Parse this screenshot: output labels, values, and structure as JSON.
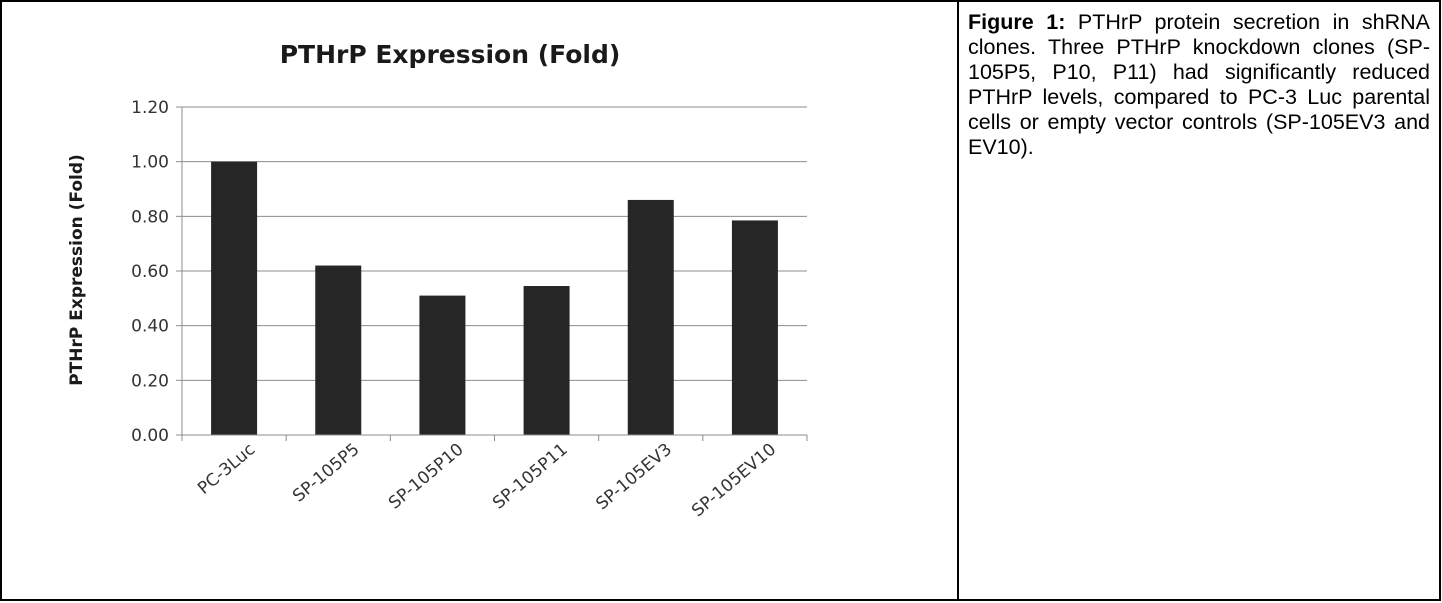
{
  "chart_data": {
    "type": "bar",
    "title": "PTHrP Expression (Fold)",
    "xlabel": "",
    "ylabel": "PTHrP Expression (Fold)",
    "categories": [
      "PC-3Luc",
      "SP-105P5",
      "SP-105P10",
      "SP-105P11",
      "SP-105EV3",
      "SP-105EV10"
    ],
    "values": [
      1.0,
      0.62,
      0.51,
      0.545,
      0.86,
      0.785
    ],
    "ylim": [
      0,
      1.2
    ],
    "yticks": [
      "0.00",
      "0.20",
      "0.40",
      "0.60",
      "0.80",
      "1.00",
      "1.20"
    ],
    "grid": true,
    "legend": "none",
    "colors": {
      "bar": "#262626",
      "grid": "#8c8c8c",
      "axis": "#8c8c8c"
    }
  },
  "caption": {
    "label": "Figure 1:",
    "text": "PTHrP protein secretion in shRNA clones.  Three PTHrP knockdown clones (SP-105P5, P10, P11) had significantly reduced PTHrP levels, compared to PC-3 Luc parental cells or empty vector controls (SP-105EV3 and EV10)."
  }
}
